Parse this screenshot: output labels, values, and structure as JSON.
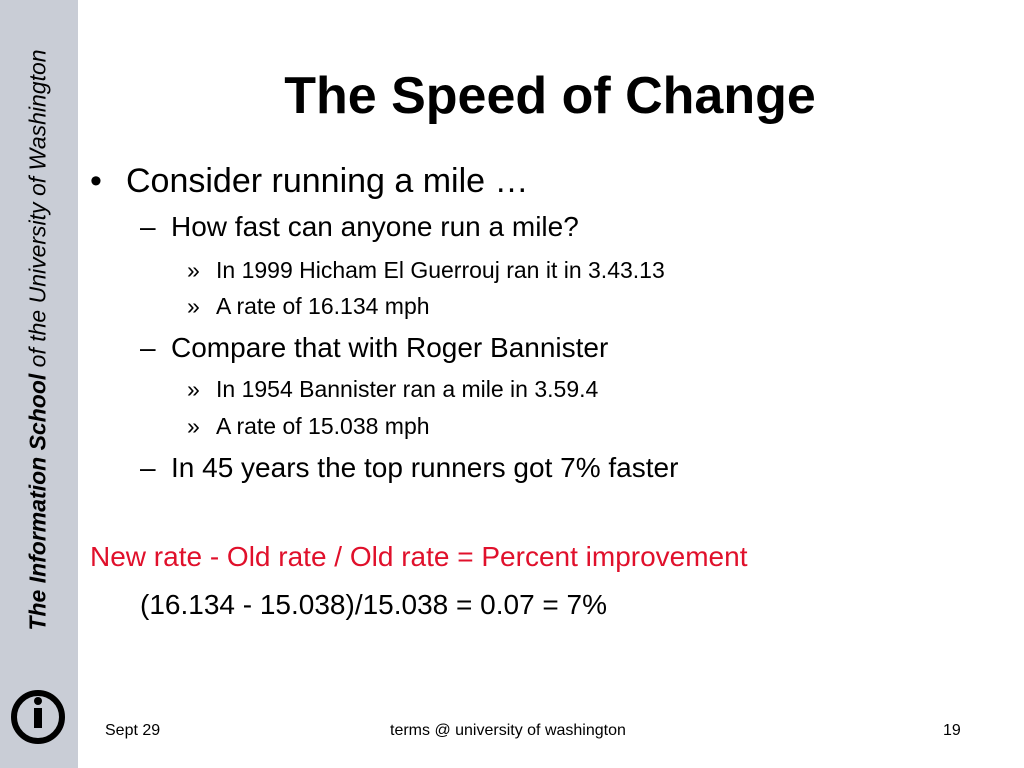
{
  "sidebar": {
    "org_bold": "The Information School",
    "org_rest": " of the University of Washington",
    "logo_ring_text": "THE INFORMATION SCHOOL"
  },
  "slide": {
    "title": "The Speed of Change",
    "bullets": [
      {
        "marker": "•",
        "text": "Consider running a mile …"
      },
      {
        "marker": "–",
        "text": "How fast can anyone run a mile?"
      },
      {
        "marker": "»",
        "text": "In 1999 Hicham El Guerrouj ran it in 3.43.13"
      },
      {
        "marker": "»",
        "text": "A rate of 16.134 mph"
      },
      {
        "marker": "–",
        "text": "Compare that with Roger Bannister"
      },
      {
        "marker": "»",
        "text": "In 1954 Bannister ran a mile in 3.59.4"
      },
      {
        "marker": "»",
        "text": "A rate of 15.038 mph"
      },
      {
        "marker": "–",
        "text": "In 45 years the top runners got 7% faster"
      }
    ],
    "formula_label": "New rate - Old rate / Old rate = Percent improvement",
    "formula_calc": "(16.134 - 15.038)/15.038 = 0.07 = 7%",
    "accent_color": "#e0102b",
    "sidebar_color": "#c9cdd6"
  },
  "footer": {
    "date": "Sept 29",
    "center": "terms @ university of washington",
    "page": "19"
  }
}
